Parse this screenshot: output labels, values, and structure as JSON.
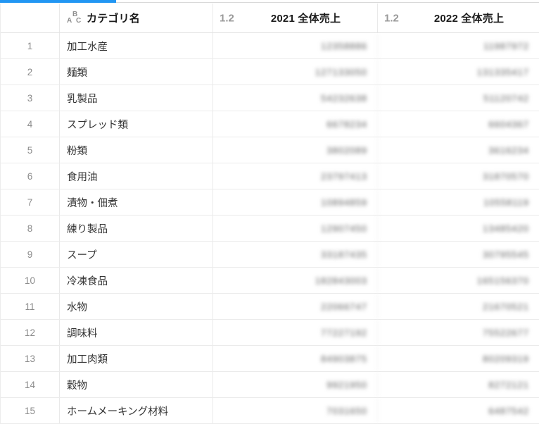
{
  "top_bar": {
    "progress_color": "#2196f3",
    "track_color": "#d9d9d9"
  },
  "table": {
    "abc_icon_letters": [
      "A",
      "B",
      "C"
    ],
    "columns": [
      {
        "key": "num",
        "label": "",
        "type_icon": ""
      },
      {
        "key": "category",
        "label": "カテゴリ名",
        "type_icon": "ABC"
      },
      {
        "key": "y2021",
        "label": "2021 全体売上",
        "type_icon": "1.2"
      },
      {
        "key": "y2022",
        "label": "2022 全体売上",
        "type_icon": "1.2"
      }
    ],
    "rows": [
      {
        "num": "1",
        "category": "加工水産",
        "y2021": "12358886",
        "y2022": "11987972"
      },
      {
        "num": "2",
        "category": "麺類",
        "y2021": "127133050",
        "y2022": "131335417"
      },
      {
        "num": "3",
        "category": "乳製品",
        "y2021": "54232638",
        "y2022": "51120742"
      },
      {
        "num": "4",
        "category": "スプレッド類",
        "y2021": "6678234",
        "y2022": "6604367"
      },
      {
        "num": "5",
        "category": "粉類",
        "y2021": "3802089",
        "y2022": "3616234"
      },
      {
        "num": "6",
        "category": "食用油",
        "y2021": "23797413",
        "y2022": "31870570"
      },
      {
        "num": "7",
        "category": "漬物・佃煮",
        "y2021": "10894859",
        "y2022": "10558119"
      },
      {
        "num": "8",
        "category": "練り製品",
        "y2021": "12907450",
        "y2022": "13485420"
      },
      {
        "num": "9",
        "category": "スープ",
        "y2021": "33187435",
        "y2022": "30795545"
      },
      {
        "num": "10",
        "category": "冷凍食品",
        "y2021": "182843003",
        "y2022": "165156370"
      },
      {
        "num": "11",
        "category": "水物",
        "y2021": "22066747",
        "y2022": "21670521"
      },
      {
        "num": "12",
        "category": "調味料",
        "y2021": "77227192",
        "y2022": "75522677"
      },
      {
        "num": "13",
        "category": "加工肉類",
        "y2021": "84903875",
        "y2022": "80209319"
      },
      {
        "num": "14",
        "category": "穀物",
        "y2021": "9921950",
        "y2022": "8272121"
      },
      {
        "num": "15",
        "category": "ホームメーキング材料",
        "y2021": "7031650",
        "y2022": "6487542"
      }
    ]
  }
}
